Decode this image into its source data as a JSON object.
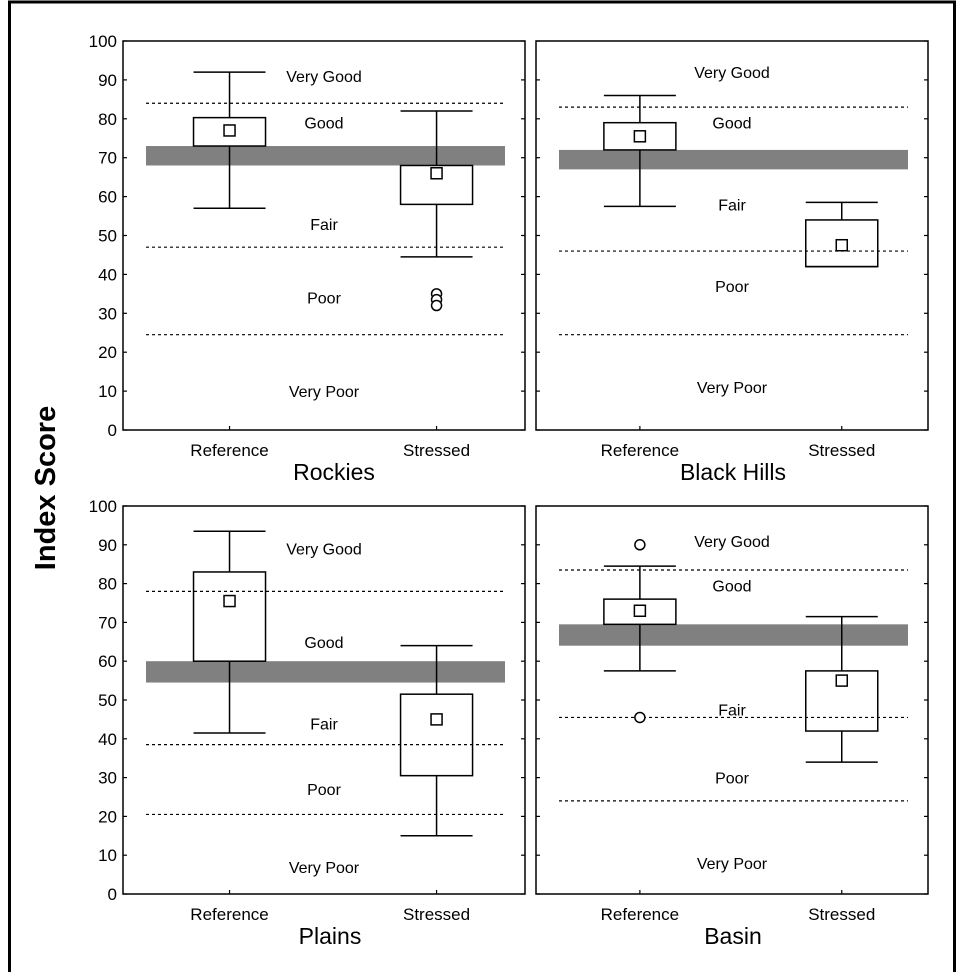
{
  "chart_data": {
    "type": "box",
    "ylabel": "Index Score",
    "ylim": [
      0,
      100
    ],
    "yticks": [
      0,
      10,
      20,
      30,
      40,
      50,
      60,
      70,
      80,
      90,
      100
    ],
    "categories": [
      "Reference",
      "Stressed"
    ],
    "colors": {
      "threshold_band": "#808080",
      "line": "#000000",
      "background": "#ffffff"
    },
    "panels": [
      {
        "title": "Rockies",
        "threshold_band": [
          68,
          73
        ],
        "condition_cutoffs": [
          84,
          47,
          24.5
        ],
        "zone_labels": [
          {
            "text": "Very Good",
            "y": 91
          },
          {
            "text": "Good",
            "y": 79
          },
          {
            "text": "Fair",
            "y": 53
          },
          {
            "text": "Poor",
            "y": 34
          },
          {
            "text": "Very Poor",
            "y": 10
          }
        ],
        "boxes": [
          {
            "category": "Reference",
            "whisker_low": 57,
            "box_low": 73,
            "box_high": 80.3,
            "mean": 77,
            "whisker_high": 92,
            "outliers": []
          },
          {
            "category": "Stressed",
            "whisker_low": 44.5,
            "box_low": 58,
            "box_high": 68,
            "mean": 66,
            "whisker_high": 82,
            "outliers": [
              35,
              33.5,
              32
            ]
          }
        ]
      },
      {
        "title": "Black Hills",
        "threshold_band": [
          67,
          72
        ],
        "condition_cutoffs": [
          83,
          46,
          24.5
        ],
        "zone_labels": [
          {
            "text": "Very Good",
            "y": 92
          },
          {
            "text": "Good",
            "y": 79
          },
          {
            "text": "Fair",
            "y": 58
          },
          {
            "text": "Poor",
            "y": 37
          },
          {
            "text": "Very Poor",
            "y": 11
          }
        ],
        "boxes": [
          {
            "category": "Reference",
            "whisker_low": 57.5,
            "box_low": 72,
            "box_high": 79,
            "mean": 75.5,
            "whisker_high": 86,
            "outliers": []
          },
          {
            "category": "Stressed",
            "whisker_low": 42,
            "box_low": 42,
            "box_high": 54,
            "mean": 47.5,
            "whisker_high": 58.5,
            "outliers": []
          }
        ]
      },
      {
        "title": "Plains",
        "threshold_band": [
          54.5,
          60
        ],
        "condition_cutoffs": [
          78,
          38.5,
          20.5
        ],
        "zone_labels": [
          {
            "text": "Very Good",
            "y": 89
          },
          {
            "text": "Good",
            "y": 65
          },
          {
            "text": "Fair",
            "y": 44
          },
          {
            "text": "Poor",
            "y": 27
          },
          {
            "text": "Very Poor",
            "y": 7
          }
        ],
        "boxes": [
          {
            "category": "Reference",
            "whisker_low": 41.5,
            "box_low": 60,
            "box_high": 83,
            "mean": 75.5,
            "whisker_high": 93.5,
            "outliers": []
          },
          {
            "category": "Stressed",
            "whisker_low": 15,
            "box_low": 30.5,
            "box_high": 51.5,
            "mean": 45,
            "whisker_high": 64,
            "outliers": []
          }
        ]
      },
      {
        "title": "Basin",
        "threshold_band": [
          64,
          69.5
        ],
        "condition_cutoffs": [
          83.5,
          45.5,
          24
        ],
        "zone_labels": [
          {
            "text": "Very Good",
            "y": 91
          },
          {
            "text": "Good",
            "y": 79.5
          },
          {
            "text": "Fair",
            "y": 47.5
          },
          {
            "text": "Poor",
            "y": 30
          },
          {
            "text": "Very Poor",
            "y": 8
          }
        ],
        "boxes": [
          {
            "category": "Reference",
            "whisker_low": 57.5,
            "box_low": 69.5,
            "box_high": 76,
            "mean": 73,
            "whisker_high": 84.5,
            "outliers": [
              90,
              45.5
            ]
          },
          {
            "category": "Stressed",
            "whisker_low": 34,
            "box_low": 42,
            "box_high": 57.5,
            "mean": 55,
            "whisker_high": 71.5,
            "outliers": []
          }
        ]
      }
    ]
  }
}
